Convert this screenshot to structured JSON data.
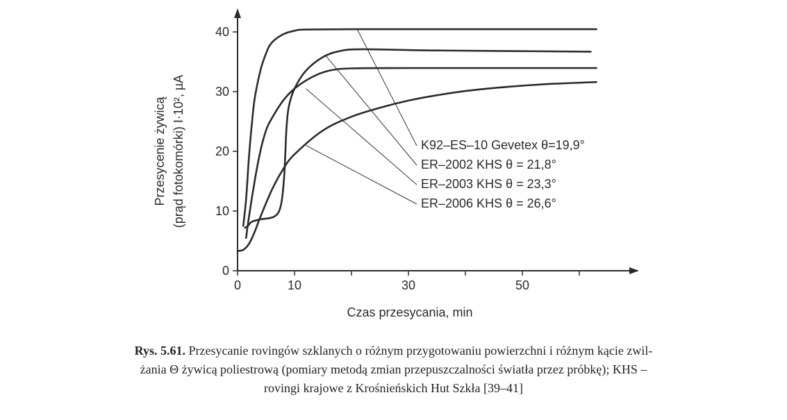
{
  "chart_data": {
    "type": "line",
    "xlabel": "Czas przesycania, min",
    "ylabel_line1": "Przesycenie żywicą",
    "ylabel_line2": "(prąd fotokomórki) I·10², µA",
    "xlim": [
      0,
      64
    ],
    "ylim": [
      0,
      42
    ],
    "x_ticks": [
      0,
      10,
      30,
      50
    ],
    "x_minor_ticks": [
      20,
      40,
      60
    ],
    "y_ticks": [
      0,
      10,
      20,
      30,
      40
    ],
    "grid": false,
    "legend_placement": "right (labels with leader lines to curves)",
    "series": [
      {
        "name": "K92–ES–10 Gevetex θ=19,9°",
        "points": [
          [
            1,
            7.5
          ],
          [
            1.5,
            12
          ],
          [
            2,
            19
          ],
          [
            2.5,
            24.5
          ],
          [
            3,
            28.8
          ],
          [
            4,
            33.5
          ],
          [
            5,
            36.4
          ],
          [
            6,
            38.2
          ],
          [
            8,
            39.6
          ],
          [
            10,
            40.2
          ],
          [
            12,
            40.4
          ],
          [
            20,
            40.45
          ],
          [
            30,
            40.45
          ],
          [
            45,
            40.45
          ],
          [
            63,
            40.45
          ]
        ]
      },
      {
        "name": "ER–2002 KHS θ = 21,8°",
        "points": [
          [
            1.3,
            7.2
          ],
          [
            1.8,
            7.5
          ],
          [
            2.5,
            8.2
          ],
          [
            4,
            8.6
          ],
          [
            5.5,
            8.8
          ],
          [
            6.5,
            9.1
          ],
          [
            7.3,
            10
          ],
          [
            7.8,
            12
          ],
          [
            8.2,
            16
          ],
          [
            8.4,
            20
          ],
          [
            8.6,
            24
          ],
          [
            9,
            27.5
          ],
          [
            10,
            30.5
          ],
          [
            12,
            33.5
          ],
          [
            15,
            35.8
          ],
          [
            18,
            36.8
          ],
          [
            22,
            37.1
          ],
          [
            35,
            36.9
          ],
          [
            62,
            36.7
          ]
        ]
      },
      {
        "name": "ER–2003 KHS θ = 23,3°",
        "points": [
          [
            1.5,
            5.5
          ],
          [
            2,
            9
          ],
          [
            3,
            15
          ],
          [
            4,
            20
          ],
          [
            5,
            23.5
          ],
          [
            6,
            25.5
          ],
          [
            8,
            28.5
          ],
          [
            10,
            30.5
          ],
          [
            13,
            32.4
          ],
          [
            16,
            33.5
          ],
          [
            20,
            33.9
          ],
          [
            30,
            33.95
          ],
          [
            45,
            33.95
          ],
          [
            63,
            33.95
          ]
        ]
      },
      {
        "name": "ER–2006 KHS θ = 26,6°",
        "points": [
          [
            0,
            3.3
          ],
          [
            1,
            3.5
          ],
          [
            2,
            4.5
          ],
          [
            3,
            6.5
          ],
          [
            4,
            9
          ],
          [
            6,
            13.5
          ],
          [
            8,
            17
          ],
          [
            10,
            19.5
          ],
          [
            15,
            23.5
          ],
          [
            20,
            25.8
          ],
          [
            25,
            27.3
          ],
          [
            30,
            28.5
          ],
          [
            35,
            29.4
          ],
          [
            40,
            30.1
          ],
          [
            45,
            30.6
          ],
          [
            50,
            31
          ],
          [
            55,
            31.3
          ],
          [
            63,
            31.6
          ]
        ]
      }
    ]
  },
  "caption": {
    "label": "Rys. 5.61.",
    "line1": " Przesycanie rovingów szklanych o różnym przygotowaniu powierzchni i różnym kącie zwil-",
    "line2": "żania Θ żywicą poliestrową (pomiary metodą zmian przepuszczalności światła przez próbkę); KHS –",
    "line3": "rovingi krajowe z Krośnieńskich Hut Szkła [39–41]"
  }
}
